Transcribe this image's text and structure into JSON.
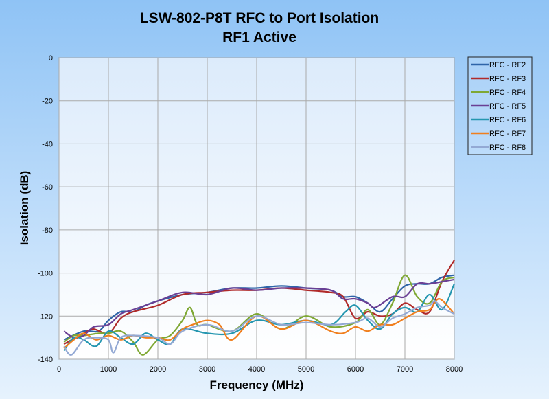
{
  "chart_data": {
    "type": "line",
    "title": "LSW-802-P8T RFC to Port Isolation",
    "subtitle": "RF1 Active",
    "xlabel": "Frequency (MHz)",
    "ylabel": "Isolation (dB)",
    "xlim": [
      0,
      8000
    ],
    "ylim": [
      -140,
      0
    ],
    "xticks": [
      0,
      1000,
      2000,
      3000,
      4000,
      5000,
      6000,
      7000,
      8000
    ],
    "yticks": [
      0,
      -20,
      -40,
      -60,
      -80,
      -100,
      -120,
      -140
    ],
    "grid": true,
    "legend_position": "right",
    "series": [
      {
        "name": "RFC - RF2",
        "color": "#2e64a8",
        "points": [
          [
            100,
            -131
          ],
          [
            500,
            -127
          ],
          [
            800,
            -127
          ],
          [
            1000,
            -122
          ],
          [
            1250,
            -118
          ],
          [
            1500,
            -118
          ],
          [
            1750,
            -115
          ],
          [
            2000,
            -113
          ],
          [
            2500,
            -110
          ],
          [
            3000,
            -109
          ],
          [
            3500,
            -107
          ],
          [
            4000,
            -107
          ],
          [
            4500,
            -106
          ],
          [
            5000,
            -107
          ],
          [
            5500,
            -108
          ],
          [
            5750,
            -111
          ],
          [
            6000,
            -111
          ],
          [
            6250,
            -114
          ],
          [
            6500,
            -118
          ],
          [
            6750,
            -112
          ],
          [
            7000,
            -106
          ],
          [
            7250,
            -105
          ],
          [
            7500,
            -105
          ],
          [
            7750,
            -102
          ],
          [
            8000,
            -101
          ]
        ]
      },
      {
        "name": "RFC - RF3",
        "color": "#b02a2a",
        "points": [
          [
            100,
            -133
          ],
          [
            500,
            -128
          ],
          [
            700,
            -126
          ],
          [
            1000,
            -128
          ],
          [
            1250,
            -121
          ],
          [
            1500,
            -118
          ],
          [
            2000,
            -115
          ],
          [
            2500,
            -110
          ],
          [
            3000,
            -109
          ],
          [
            3500,
            -108
          ],
          [
            4000,
            -108
          ],
          [
            4500,
            -107
          ],
          [
            5000,
            -108
          ],
          [
            5500,
            -109
          ],
          [
            5750,
            -111
          ],
          [
            6000,
            -121
          ],
          [
            6250,
            -118
          ],
          [
            6500,
            -120
          ],
          [
            6750,
            -119
          ],
          [
            7000,
            -114
          ],
          [
            7250,
            -117
          ],
          [
            7500,
            -118
          ],
          [
            7750,
            -104
          ],
          [
            8000,
            -94
          ]
        ]
      },
      {
        "name": "RFC - RF4",
        "color": "#7fa834",
        "points": [
          [
            100,
            -132
          ],
          [
            300,
            -129
          ],
          [
            500,
            -129
          ],
          [
            800,
            -128
          ],
          [
            1000,
            -128
          ],
          [
            1250,
            -127
          ],
          [
            1500,
            -132
          ],
          [
            1700,
            -138
          ],
          [
            2000,
            -131
          ],
          [
            2250,
            -129
          ],
          [
            2500,
            -122
          ],
          [
            2650,
            -116
          ],
          [
            2800,
            -124
          ],
          [
            3000,
            -124
          ],
          [
            3500,
            -127
          ],
          [
            4000,
            -119
          ],
          [
            4500,
            -126
          ],
          [
            5000,
            -120
          ],
          [
            5500,
            -125
          ],
          [
            6000,
            -123
          ],
          [
            6250,
            -117
          ],
          [
            6500,
            -124
          ],
          [
            6750,
            -114
          ],
          [
            7000,
            -101
          ],
          [
            7250,
            -111
          ],
          [
            7500,
            -114
          ],
          [
            7750,
            -104
          ],
          [
            8000,
            -102
          ]
        ]
      },
      {
        "name": "RFC - RF5",
        "color": "#6a3f94",
        "points": [
          [
            100,
            -127
          ],
          [
            300,
            -130
          ],
          [
            500,
            -129
          ],
          [
            700,
            -125
          ],
          [
            1000,
            -124
          ],
          [
            1250,
            -119
          ],
          [
            1500,
            -117
          ],
          [
            2000,
            -113
          ],
          [
            2500,
            -109
          ],
          [
            3000,
            -110
          ],
          [
            3500,
            -107
          ],
          [
            4000,
            -108
          ],
          [
            4500,
            -107
          ],
          [
            5000,
            -107
          ],
          [
            5500,
            -108
          ],
          [
            5750,
            -112
          ],
          [
            6000,
            -112
          ],
          [
            6250,
            -114
          ],
          [
            6400,
            -116
          ],
          [
            6750,
            -111
          ],
          [
            7000,
            -111
          ],
          [
            7250,
            -105
          ],
          [
            7500,
            -105
          ],
          [
            7750,
            -104
          ],
          [
            8000,
            -103
          ]
        ]
      },
      {
        "name": "RFC - RF6",
        "color": "#2496b0",
        "points": [
          [
            100,
            -136
          ],
          [
            300,
            -130
          ],
          [
            500,
            -131
          ],
          [
            750,
            -134
          ],
          [
            1000,
            -127
          ],
          [
            1250,
            -130
          ],
          [
            1500,
            -133
          ],
          [
            1750,
            -128
          ],
          [
            2000,
            -131
          ],
          [
            2250,
            -133
          ],
          [
            2500,
            -126
          ],
          [
            3000,
            -128
          ],
          [
            3500,
            -128
          ],
          [
            4000,
            -122
          ],
          [
            4500,
            -124
          ],
          [
            5000,
            -122
          ],
          [
            5500,
            -124
          ],
          [
            5800,
            -118
          ],
          [
            6000,
            -115
          ],
          [
            6250,
            -122
          ],
          [
            6500,
            -126
          ],
          [
            6750,
            -119
          ],
          [
            7000,
            -116
          ],
          [
            7250,
            -118
          ],
          [
            7500,
            -110
          ],
          [
            7750,
            -117
          ],
          [
            8000,
            -105
          ]
        ]
      },
      {
        "name": "RFC - RF7",
        "color": "#f07f1e",
        "points": [
          [
            100,
            -135
          ],
          [
            300,
            -131
          ],
          [
            500,
            -128
          ],
          [
            750,
            -131
          ],
          [
            1000,
            -129
          ],
          [
            1250,
            -131
          ],
          [
            1500,
            -129
          ],
          [
            1750,
            -130
          ],
          [
            2000,
            -130
          ],
          [
            2250,
            -131
          ],
          [
            2500,
            -126
          ],
          [
            2700,
            -124
          ],
          [
            3000,
            -122
          ],
          [
            3250,
            -124
          ],
          [
            3500,
            -131
          ],
          [
            4000,
            -120
          ],
          [
            4500,
            -126
          ],
          [
            5000,
            -122
          ],
          [
            5500,
            -127
          ],
          [
            5750,
            -128
          ],
          [
            6000,
            -125
          ],
          [
            6250,
            -127
          ],
          [
            6500,
            -124
          ],
          [
            6750,
            -124
          ],
          [
            7000,
            -121
          ],
          [
            7250,
            -118
          ],
          [
            7500,
            -117
          ],
          [
            7700,
            -112
          ],
          [
            8000,
            -119
          ]
        ]
      },
      {
        "name": "RFC - RF8",
        "color": "#93a9d4",
        "points": [
          [
            100,
            -134
          ],
          [
            250,
            -138
          ],
          [
            500,
            -131
          ],
          [
            750,
            -130
          ],
          [
            1000,
            -131
          ],
          [
            1100,
            -137
          ],
          [
            1250,
            -130
          ],
          [
            1500,
            -129
          ],
          [
            2000,
            -130
          ],
          [
            2250,
            -133
          ],
          [
            2500,
            -127
          ],
          [
            3000,
            -124
          ],
          [
            3500,
            -127
          ],
          [
            4000,
            -120
          ],
          [
            4500,
            -124
          ],
          [
            5000,
            -123
          ],
          [
            5500,
            -124
          ],
          [
            6000,
            -123
          ],
          [
            6250,
            -121
          ],
          [
            6500,
            -125
          ],
          [
            6750,
            -121
          ],
          [
            7000,
            -119
          ],
          [
            7250,
            -116
          ],
          [
            7500,
            -115
          ],
          [
            7600,
            -113
          ],
          [
            7750,
            -116
          ],
          [
            8000,
            -119
          ]
        ]
      }
    ]
  }
}
